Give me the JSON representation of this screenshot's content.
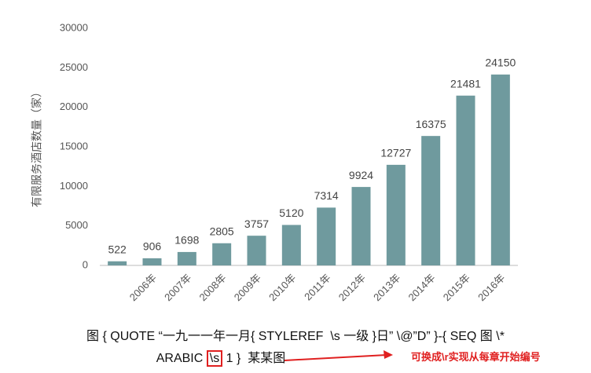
{
  "chart_data": {
    "type": "bar",
    "ylabel": "有限服务酒店数量（家）",
    "categories": [
      null,
      "2006年",
      "2007年",
      "2008年",
      "2009年",
      "2010年",
      "2011年",
      "2012年",
      "2013年",
      "2014年",
      "2015年",
      "2016年"
    ],
    "values": [
      522,
      906,
      1698,
      2805,
      3757,
      5120,
      7314,
      9924,
      12727,
      16375,
      21481,
      24150
    ],
    "color": "#6f9a9e",
    "ylim": [
      0,
      30000
    ],
    "yticks": [
      0,
      5000,
      10000,
      15000,
      20000,
      25000,
      30000
    ],
    "grid": false
  },
  "caption": {
    "line1": "图 { QUOTE “一九一一年一月{ STYLEREF  \\s 一级 }日” \\@”D” }-{ SEQ 图 \\*",
    "line2_start": "ARABIC",
    "highlight": "\\s",
    "line2_end": "1 }  某某图",
    "annotation": "可换成\\r实现从每章开始编号"
  }
}
